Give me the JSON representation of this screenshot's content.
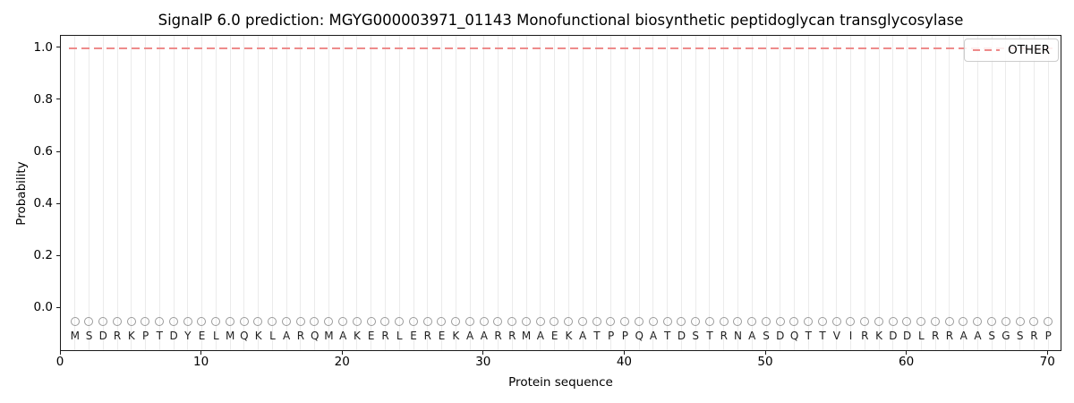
{
  "figure": {
    "title": "SignalP 6.0 prediction: MGYG000003971_01143 Monofunctional biosynthetic peptidoglycan transglycosylase"
  },
  "chart_data": {
    "type": "line",
    "title": "SignalP 6.0 prediction: MGYG000003971_01143 Monofunctional biosynthetic peptidoglycan transglycosylase",
    "xlabel": "Protein sequence",
    "ylabel": "Probability",
    "xlim": [
      0,
      71
    ],
    "ylim": [
      -0.168,
      1.048
    ],
    "x_tick_values": [
      0,
      10,
      20,
      30,
      40,
      50,
      60,
      70
    ],
    "x_tick_labels": [
      "0",
      "10",
      "20",
      "30",
      "40",
      "50",
      "60",
      "70"
    ],
    "y_tick_values": [
      0.0,
      0.2,
      0.4,
      0.6,
      0.8,
      1.0
    ],
    "y_tick_labels": [
      "0.0",
      "0.2",
      "0.4",
      "0.6",
      "0.8",
      "1.0"
    ],
    "grid": "vertical line at every residue position 1-70",
    "legend_position": "upper right",
    "series": [
      {
        "name": "OTHER",
        "line_style": "dashed",
        "color": "#ee8b8b",
        "constant_value": 1.0,
        "x_range": [
          1,
          70
        ]
      }
    ],
    "sequence": "MSDRKPTDYELMQKLARQMAKERLEREKAARRMAEKATPPQATDSTRNASDQTTVIRKDDLRRAASGSRP",
    "sequence_markers": {
      "shape": "open-circle",
      "y_value": -0.05,
      "stroke_color": "#9b9b9b"
    }
  },
  "legend": {
    "entries": [
      {
        "label": "OTHER",
        "color": "#ee8b8b",
        "style": "dashed"
      }
    ]
  },
  "colors": {
    "background": "#ffffff",
    "spine": "#1a1a1a",
    "gridline": "#ebebeb",
    "dashed_line": "#ee8b8b",
    "marker_stroke": "#9b9b9b",
    "letter_text": "#1f1f1f"
  }
}
